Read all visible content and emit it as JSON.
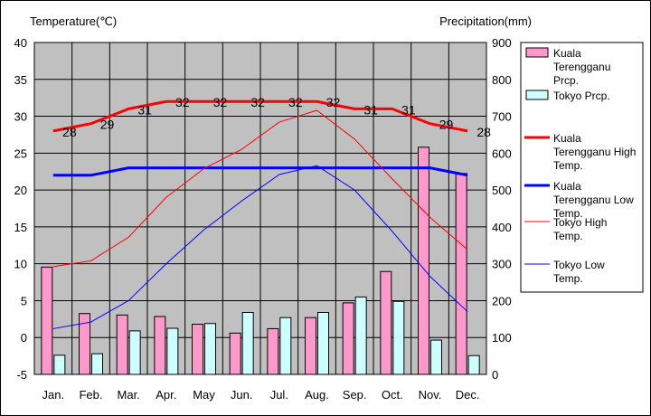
{
  "chart_data": {
    "type": "bar",
    "categories": [
      "Jan.",
      "Feb.",
      "Mar.",
      "Apr.",
      "May",
      "Jun.",
      "Jul.",
      "Aug.",
      "Sep.",
      "Oct.",
      "Nov.",
      "Dec."
    ],
    "left_axis_label": "Temperature(℃)",
    "right_axis_label": "Precipitation(mm)",
    "ylim_left": [
      -5,
      40
    ],
    "ylim_right": [
      0,
      900
    ],
    "left_ticks": [
      40,
      35,
      30,
      25,
      20,
      15,
      10,
      5,
      0,
      -5
    ],
    "right_ticks": [
      900,
      800,
      700,
      600,
      500,
      400,
      300,
      200,
      100,
      0
    ],
    "grid": true,
    "legend_position": "right",
    "bars": [
      {
        "name": "Kuala Terengganu Prcp.",
        "legend_lines": [
          "Kuala",
          "Terengganu",
          "Prcp."
        ],
        "color": "#ff99cc",
        "values": [
          291,
          165,
          161,
          157,
          136,
          112,
          124,
          154,
          194,
          279,
          616,
          545
        ]
      },
      {
        "name": "Tokyo Prcp.",
        "legend_lines": [
          "Tokyo Prcp."
        ],
        "color": "#ccffff",
        "values": [
          52,
          56,
          118,
          125,
          138,
          168,
          154,
          168,
          210,
          198,
          93,
          51
        ]
      }
    ],
    "lines": [
      {
        "name": "Kuala Terengganu High Temp.",
        "legend_lines": [
          "Kuala",
          "Terengganu High",
          "Temp."
        ],
        "color": "#ff0000",
        "width": 3,
        "values": [
          28,
          29,
          31,
          32,
          32,
          32,
          32,
          32,
          31,
          31,
          29,
          28
        ],
        "labels": [
          "28",
          "29",
          "31",
          "32",
          "32",
          "32",
          "32",
          "32",
          "31",
          "31",
          "29",
          "28"
        ]
      },
      {
        "name": "Kuala Terengganu Low Temp.",
        "legend_lines": [
          "Kuala",
          "Terengganu Low",
          "Temp."
        ],
        "color": "#0000ff",
        "width": 3,
        "values": [
          22,
          22,
          23,
          23,
          23,
          23,
          23,
          23,
          23,
          23,
          23,
          22
        ]
      },
      {
        "name": "Tokyo High Temp.",
        "legend_lines": [
          "Tokyo High",
          "Temp."
        ],
        "color": "#ff0000",
        "width": 1,
        "values": [
          9.6,
          10.4,
          13.6,
          19.0,
          22.9,
          25.5,
          29.2,
          30.8,
          26.9,
          21.5,
          16.3,
          11.9
        ]
      },
      {
        "name": "Tokyo Low Temp.",
        "legend_lines": [
          "Tokyo Low",
          "Temp."
        ],
        "color": "#0000ff",
        "width": 1,
        "values": [
          1.2,
          2.1,
          5.0,
          10.0,
          14.6,
          18.5,
          22.1,
          23.3,
          20.0,
          14.4,
          8.3,
          3.5
        ]
      }
    ]
  }
}
